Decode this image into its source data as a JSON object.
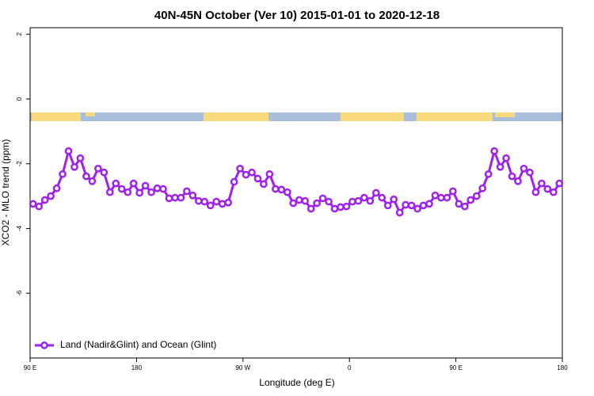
{
  "chart_data": {
    "type": "line",
    "title": "40N-45N October (Ver 10)   2015-01-01 to 2020-12-18",
    "x_label": "Longitude (deg E)",
    "y_label": "XCO2 - MLO trend (ppm)",
    "xlim": [
      90,
      540
    ],
    "ylim": [
      -8,
      2.2
    ],
    "xticks": [
      {
        "value": 90,
        "label": "90 E"
      },
      180,
      {
        "value": 270,
        "label": "90 W"
      },
      {
        "value": 360,
        "label": "0"
      },
      {
        "value": 450,
        "label": "90 E"
      },
      {
        "value": 540,
        "label": "180"
      }
    ],
    "yticks": [
      2,
      0,
      -2,
      -4,
      -6
    ],
    "legend": "bottomleft",
    "x": [
      92.5,
      97.5,
      102.5,
      107.5,
      112.5,
      117.5,
      122.5,
      127.5,
      132.5,
      137.5,
      142.5,
      147.5,
      152.5,
      157.5,
      162.5,
      167.5,
      172.5,
      177.5,
      182.5,
      187.5,
      192.5,
      197.5,
      202.5,
      207.5,
      212.5,
      217.5,
      222.5,
      227.5,
      232.5,
      237.5,
      242.5,
      247.5,
      252.5,
      257.5,
      262.5,
      267.5,
      272.5,
      277.5,
      282.5,
      287.5,
      292.5,
      297.5,
      302.5,
      307.5,
      312.5,
      317.5,
      322.5,
      327.5,
      332.5,
      337.5,
      342.5,
      347.5,
      352.5,
      357.5,
      362.5,
      367.5,
      372.5,
      377.5,
      382.5,
      387.5,
      392.5,
      397.5,
      402.5,
      407.5,
      412.5,
      417.5,
      422.5,
      427.5,
      432.5,
      437.5,
      442.5,
      447.5,
      452.5,
      457.5,
      462.5,
      467.5,
      472.5,
      477.5,
      482.5,
      487.5,
      492.5,
      497.5,
      502.5,
      507.5,
      512.5,
      517.5,
      522.5,
      527.5,
      532.5,
      537.5
    ],
    "series": [
      {
        "name": "Land (Nadir&Glint) and Ocean (Glint)",
        "color": "#a020f0",
        "values": [
          -3.24,
          -3.32,
          -3.12,
          -3.0,
          -2.76,
          -2.32,
          -1.61,
          -2.1,
          -1.83,
          -2.39,
          -2.54,
          -2.15,
          -2.27,
          -2.88,
          -2.61,
          -2.78,
          -2.88,
          -2.61,
          -2.9,
          -2.68,
          -2.88,
          -2.76,
          -2.78,
          -3.07,
          -3.05,
          -3.05,
          -2.85,
          -2.98,
          -3.15,
          -3.17,
          -3.29,
          -3.17,
          -3.24,
          -3.2,
          -2.56,
          -2.15,
          -2.34,
          -2.27,
          -2.46,
          -2.63,
          -2.32,
          -2.78,
          -2.8,
          -2.88,
          -3.22,
          -3.12,
          -3.15,
          -3.39,
          -3.22,
          -3.07,
          -3.17,
          -3.39,
          -3.34,
          -3.32,
          -3.17,
          -3.15,
          -3.05,
          -3.15,
          -2.9,
          -3.05,
          -3.29,
          -3.1,
          -3.51,
          -3.27,
          -3.29,
          -3.39,
          -3.29,
          -3.24,
          -2.98,
          -3.05,
          -3.05,
          -2.85,
          -3.24,
          -3.32,
          -3.12,
          -3.0,
          -2.76,
          -2.32,
          -1.61,
          -2.1,
          -1.83,
          -2.39,
          -2.54,
          -2.15,
          -2.27,
          -2.88,
          -2.61,
          -2.78,
          -2.88,
          -2.61
        ]
      }
    ]
  }
}
